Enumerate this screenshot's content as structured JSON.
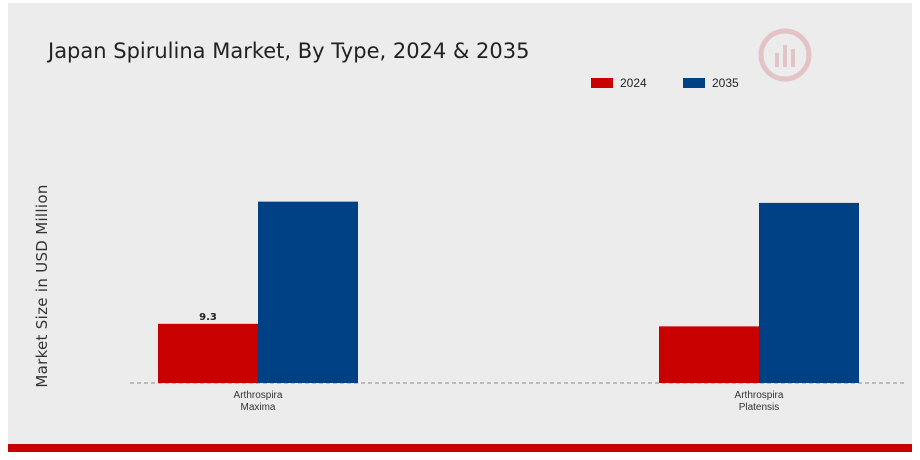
{
  "colors": {
    "c2024": "#c80000",
    "c2035": "#004185",
    "bottom_bar": "#c80000",
    "logo": "#c9363f"
  },
  "logo": {
    "icon": "market-research-logo-icon"
  },
  "chart_data": {
    "type": "bar",
    "title": "Japan Spirulina Market, By Type, 2024 & 2035",
    "xlabel": "",
    "ylabel": "Market Size in USD Million",
    "categories": [
      {
        "line1": "Arthrospira",
        "line2": "Maxima"
      },
      {
        "line1": "Arthrospira",
        "line2": "Platensis"
      }
    ],
    "series": [
      {
        "name": "2024",
        "values": [
          9.3,
          8.9
        ]
      },
      {
        "name": "2035",
        "values": [
          28.5,
          28.3
        ]
      }
    ],
    "data_labels": [
      "9.3",
      null
    ],
    "ylim": [
      0,
      33
    ],
    "grid": false,
    "legend_position": "top-right"
  }
}
